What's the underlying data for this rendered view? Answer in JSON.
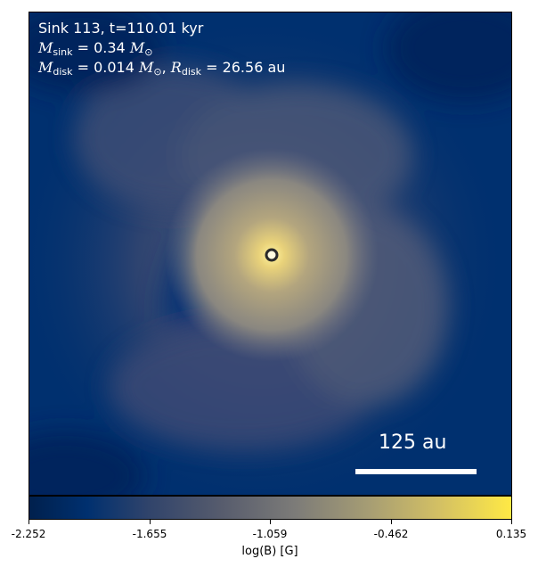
{
  "annotation": {
    "line1": "Sink 113, t=110.01 kyr",
    "msink_value": "0.34",
    "mdisk_value": "0.014",
    "rdisk_value": "26.56",
    "rdisk_unit": "au"
  },
  "scale_bar": {
    "label": "125 au"
  },
  "colorbar": {
    "label": "log(B) [G]",
    "ticks": [
      "-2.252",
      "-1.655",
      "-1.059",
      "-0.462",
      "0.135"
    ],
    "colormap": "cividis",
    "colors": [
      "#00204d",
      "#00306f",
      "#575c6d",
      "#a59c74",
      "#ffe945"
    ]
  },
  "marker": {
    "icon": "sink-particle-icon"
  }
}
